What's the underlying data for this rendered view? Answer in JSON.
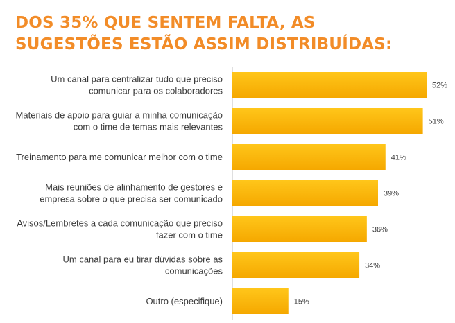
{
  "title_lines": [
    "DOS 35% QUE SENTEM FALTA, AS",
    "SUGESTÕES ESTÃO ASSIM DISTRIBUÍDAS:"
  ],
  "colors": {
    "title": "#F28C28",
    "bar_top": "#FFC61A",
    "bar_bottom": "#F5A800",
    "axis": "#bfbfbf",
    "text": "#3a3a3a"
  },
  "chart_data": {
    "type": "bar",
    "orientation": "horizontal",
    "categories": [
      [
        "Um canal para centralizar tudo que preciso",
        "comunicar para os colaboradores"
      ],
      [
        "Materiais de apoio para guiar a minha comunicação",
        "com o time de temas mais relevantes"
      ],
      [
        "Treinamento para me comunicar melhor com o time"
      ],
      [
        "Mais reuniões de alinhamento de gestores e",
        "empresa sobre o que precisa ser comunicado"
      ],
      [
        "Avisos/Lembretes a cada comunicação que preciso",
        "fazer com o time"
      ],
      [
        "Um canal para eu tirar dúvidas sobre as",
        "comunicações"
      ],
      [
        "Outro (especifique)"
      ]
    ],
    "values": [
      52,
      51,
      41,
      39,
      36,
      34,
      15
    ],
    "value_labels": [
      "52%",
      "51%",
      "41%",
      "39%",
      "36%",
      "34%",
      "15%"
    ],
    "xlim": [
      0,
      52
    ],
    "grid": false,
    "legend": "none"
  }
}
